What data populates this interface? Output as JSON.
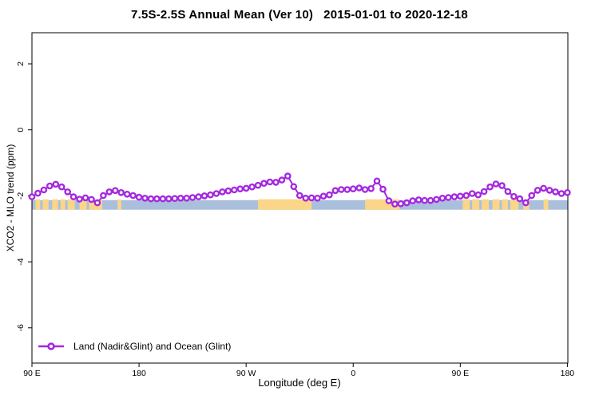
{
  "title": "7.5S-2.5S Annual Mean (Ver 10)   2015-01-01 to 2020-12-18",
  "chart_data": {
    "type": "line",
    "title": "7.5S-2.5S Annual Mean (Ver 10)   2015-01-01 to 2020-12-18",
    "xlabel": "Longitude (deg E)",
    "ylabel": "XCO2 - MLO trend (ppm)",
    "xlim": [
      90,
      540
    ],
    "ylim": [
      -7.05,
      2.95
    ],
    "grid": false,
    "x_ticks": [
      {
        "value": 90,
        "label": "90 E"
      },
      {
        "value": 180,
        "label": "180"
      },
      {
        "value": 270,
        "label": "90 W"
      },
      {
        "value": 360,
        "label": "0"
      },
      {
        "value": 450,
        "label": "90 E"
      },
      {
        "value": 540,
        "label": "180"
      }
    ],
    "y_ticks": [
      {
        "value": 2,
        "label": "2"
      },
      {
        "value": 0,
        "label": "0"
      },
      {
        "value": -2,
        "label": "-2"
      },
      {
        "value": -4,
        "label": "-4"
      },
      {
        "value": -6,
        "label": "-6"
      }
    ],
    "legend": {
      "position": "bottom-left",
      "entries": [
        {
          "label": "Land (Nadir&Glint) and Ocean (Glint)",
          "color": "#A428E0",
          "marker": "open-circle"
        }
      ]
    },
    "series": [
      {
        "name": "Land (Nadir&Glint) and Ocean (Glint)",
        "color": "#A428E0",
        "marker": "open-circle",
        "x": [
          90,
          95,
          100,
          105,
          110,
          115,
          120,
          125,
          130,
          135,
          140,
          145,
          150,
          155,
          160,
          165,
          170,
          175,
          180,
          185,
          190,
          195,
          200,
          205,
          210,
          215,
          220,
          225,
          230,
          235,
          240,
          245,
          250,
          255,
          260,
          265,
          270,
          275,
          280,
          285,
          290,
          295,
          300,
          305,
          310,
          315,
          320,
          325,
          330,
          335,
          340,
          345,
          350,
          355,
          360,
          365,
          370,
          375,
          380,
          385,
          390,
          395,
          400,
          405,
          410,
          415,
          420,
          425,
          430,
          435,
          440,
          445,
          450,
          455,
          460,
          465,
          470,
          475,
          480,
          485,
          490,
          495,
          500,
          505,
          510,
          515,
          520,
          525,
          530,
          535,
          540
        ],
        "y": [
          -2.03,
          -1.92,
          -1.82,
          -1.7,
          -1.65,
          -1.73,
          -1.88,
          -2.03,
          -2.1,
          -2.06,
          -2.11,
          -2.21,
          -1.99,
          -1.88,
          -1.84,
          -1.9,
          -1.95,
          -1.99,
          -2.04,
          -2.07,
          -2.09,
          -2.09,
          -2.09,
          -2.09,
          -2.08,
          -2.07,
          -2.07,
          -2.05,
          -2.03,
          -2.0,
          -1.97,
          -1.93,
          -1.88,
          -1.85,
          -1.82,
          -1.79,
          -1.77,
          -1.73,
          -1.68,
          -1.62,
          -1.58,
          -1.59,
          -1.52,
          -1.4,
          -1.72,
          -1.99,
          -2.07,
          -2.06,
          -2.07,
          -2.01,
          -1.97,
          -1.84,
          -1.81,
          -1.81,
          -1.79,
          -1.76,
          -1.81,
          -1.78,
          -1.55,
          -1.8,
          -2.15,
          -2.25,
          -2.24,
          -2.21,
          -2.15,
          -2.12,
          -2.14,
          -2.14,
          -2.11,
          -2.07,
          -2.05,
          -2.03,
          -2.01,
          -1.99,
          -1.93,
          -1.97,
          -1.87,
          -1.73,
          -1.64,
          -1.69,
          -1.87,
          -2.02,
          -2.09,
          -2.21,
          -1.99,
          -1.83,
          -1.77,
          -1.83,
          -1.88,
          -1.93,
          -1.9
        ]
      }
    ],
    "map_band": {
      "description": "land-ocean strip along latitude band",
      "y_range": [
        -2.42,
        -2.13
      ],
      "ocean_color": "#AABFDC",
      "land_color": "#FBD689",
      "land_segments": [
        [
          93,
          97
        ],
        [
          99,
          104
        ],
        [
          107,
          112
        ],
        [
          114,
          118
        ],
        [
          120,
          126
        ],
        [
          130,
          136
        ],
        [
          138,
          149
        ],
        [
          162,
          165
        ],
        [
          280,
          325
        ],
        [
          370,
          399
        ],
        [
          452,
          458
        ],
        [
          460,
          466
        ],
        [
          468,
          474
        ],
        [
          477,
          483
        ],
        [
          485,
          490
        ],
        [
          492,
          499
        ],
        [
          503,
          508
        ],
        [
          520,
          524
        ]
      ]
    }
  },
  "colors": {
    "axis": "#000000",
    "background": "#ffffff",
    "series": "#A428E0",
    "ocean": "#AABFDC",
    "land": "#FBD689"
  }
}
